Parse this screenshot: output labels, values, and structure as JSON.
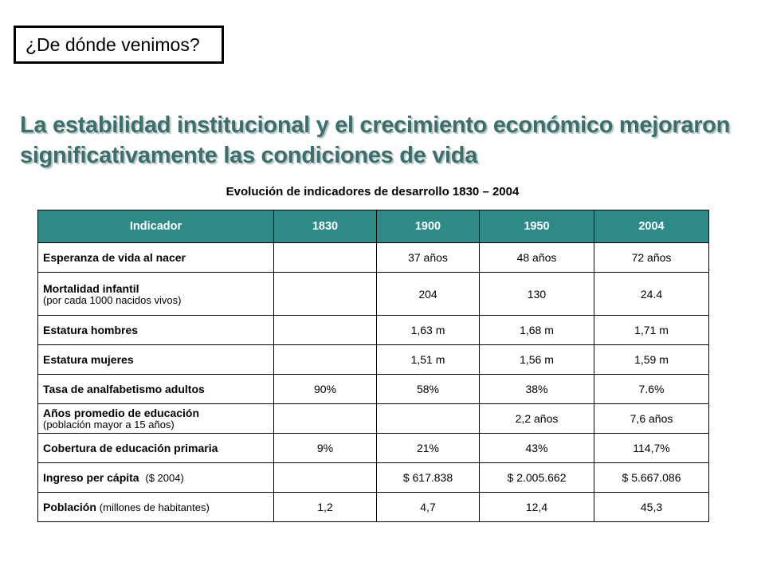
{
  "header_box": {
    "title": "¿De dónde venimos?"
  },
  "headline": "La estabilidad institucional y el crecimiento económico mejoraron significativamente las condiciones de vida",
  "table_title": "Evolución de indicadores de desarrollo 1830 – 2004",
  "table": {
    "headers": [
      "Indicador",
      "1830",
      "1900",
      "1950",
      "2004"
    ],
    "rows": [
      {
        "label": "Esperanza de vida al nacer",
        "note": "",
        "values": [
          "",
          "37 años",
          "48 años",
          "72 años"
        ]
      },
      {
        "label": "Mortalidad infantil",
        "note": "(por cada 1000 nacidos vivos)",
        "values": [
          "",
          "204",
          "130",
          "24.4"
        ]
      },
      {
        "label": "Estatura hombres",
        "note": "",
        "values": [
          "",
          "1,63 m",
          "1,68 m",
          "1,71 m"
        ]
      },
      {
        "label": "Estatura mujeres",
        "note": "",
        "values": [
          "",
          "1,51 m",
          "1,56 m",
          "1,59 m"
        ]
      },
      {
        "label": "Tasa de analfabetismo adultos",
        "note": "",
        "values": [
          "90%",
          "58%",
          "38%",
          "7.6%"
        ]
      },
      {
        "label": "Años promedio de educación",
        "note": "(población mayor a 15 años)",
        "values": [
          "",
          "",
          "2,2 años",
          "7,6 años"
        ]
      },
      {
        "label": "Cobertura de educación primaria",
        "note": "",
        "values": [
          "9%",
          "21%",
          "43%",
          "114,7%"
        ]
      },
      {
        "label": "Ingreso per cápita",
        "note": "($ 2004)",
        "values": [
          "",
          "$ 617.838",
          "$ 2.005.662",
          "$ 5.667.086"
        ]
      },
      {
        "label": "Población",
        "note": "(millones de habitantes)",
        "values": [
          "1,2",
          "4,7",
          "12,4",
          "45,3"
        ]
      }
    ]
  },
  "colors": {
    "header_bg": "#2e8a86",
    "headline": "#3b6f6c"
  }
}
